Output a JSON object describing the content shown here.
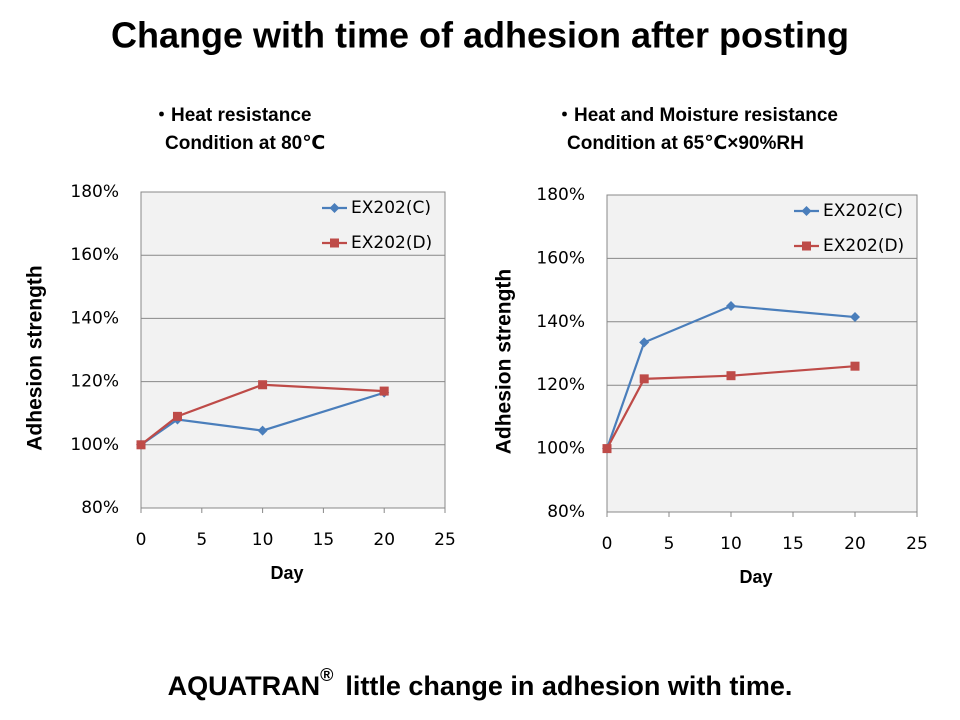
{
  "title": "Change with time of adhesion after posting",
  "footer": {
    "brand": "AQUATRAN",
    "mark": "®",
    "text": "little change in adhesion with time."
  },
  "chart_data": [
    {
      "type": "line",
      "subtitle": [
        "・Heat resistance",
        "Condition at 80℃"
      ],
      "x_label": "Day",
      "y_label": "Adhesion strength",
      "x": [
        0,
        3,
        10,
        20
      ],
      "series": [
        {
          "name": "EX202(C)",
          "color": "#4a7ebb",
          "marker": "diamond",
          "values": [
            100,
            108,
            104.5,
            116.5
          ]
        },
        {
          "name": "EX202(D)",
          "color": "#be4b48",
          "marker": "square",
          "values": [
            100,
            109,
            119,
            117
          ]
        }
      ],
      "xlim": [
        0,
        25
      ],
      "xticks": [
        0,
        5,
        10,
        15,
        20,
        25
      ],
      "ylim": [
        80,
        180
      ],
      "yticks": [
        {
          "value": 80,
          "label": "80%"
        },
        {
          "value": 100,
          "label": "100%"
        },
        {
          "value": 120,
          "label": "120%"
        },
        {
          "value": 140,
          "label": "140%"
        },
        {
          "value": 160,
          "label": "160%"
        },
        {
          "value": 180,
          "label": "180%"
        }
      ],
      "grid": true,
      "legend": "upper right"
    },
    {
      "type": "line",
      "subtitle": [
        "・Heat and Moisture resistance",
        "Condition at 65℃×90%RH"
      ],
      "x_label": "Day",
      "y_label": "Adhesion strength",
      "x": [
        0,
        3,
        10,
        20
      ],
      "series": [
        {
          "name": "EX202(C)",
          "color": "#4a7ebb",
          "marker": "diamond",
          "values": [
            100,
            133.5,
            145,
            141.5
          ]
        },
        {
          "name": "EX202(D)",
          "color": "#be4b48",
          "marker": "square",
          "values": [
            100,
            122,
            123,
            126
          ]
        }
      ],
      "xlim": [
        0,
        25
      ],
      "xticks": [
        0,
        5,
        10,
        15,
        20,
        25
      ],
      "ylim": [
        80,
        180
      ],
      "yticks": [
        {
          "value": 80,
          "label": "80%"
        },
        {
          "value": 100,
          "label": "100%"
        },
        {
          "value": 120,
          "label": "120%"
        },
        {
          "value": 140,
          "label": "140%"
        },
        {
          "value": 160,
          "label": "160%"
        },
        {
          "value": 180,
          "label": "180%"
        }
      ],
      "grid": true,
      "legend": "upper right"
    }
  ]
}
